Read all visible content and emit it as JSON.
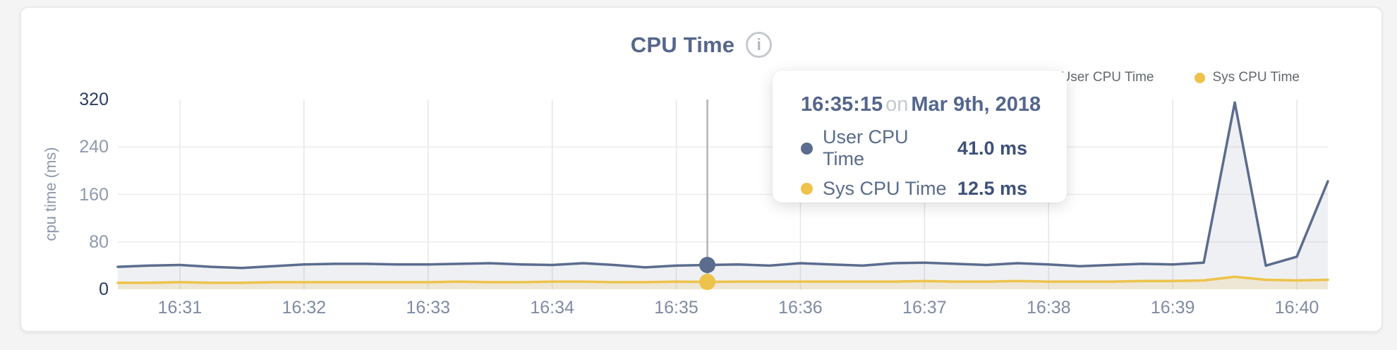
{
  "header": {
    "title": "CPU Time",
    "info_glyph": "i"
  },
  "legend": [
    {
      "label": "User CPU Time",
      "color": "#5b6c8e"
    },
    {
      "label": "Sys CPU Time",
      "color": "#eec34b"
    }
  ],
  "tooltip": {
    "time": "16:35:15",
    "separator": "on",
    "date": "Mar 9th, 2018",
    "rows": [
      {
        "label": "User CPU Time",
        "value": "41.0 ms",
        "color": "#5b6c8e"
      },
      {
        "label": "Sys CPU Time",
        "value": "12.5 ms",
        "color": "#eec34b"
      }
    ]
  },
  "chart_data": {
    "type": "area",
    "title": "CPU Time",
    "xlabel": "",
    "ylabel": "cpu time (ms)",
    "ylim": [
      0,
      320
    ],
    "yticks": [
      0,
      80,
      160,
      240,
      320
    ],
    "ygrid": [
      80,
      160,
      240
    ],
    "xticks": [
      "16:31",
      "16:32",
      "16:33",
      "16:34",
      "16:35",
      "16:36",
      "16:37",
      "16:38",
      "16:39",
      "16:40"
    ],
    "x_start": "16:30:30",
    "x_end": "16:40:15",
    "interval_seconds": 15,
    "grid": true,
    "legend_position": "top-right",
    "series": [
      {
        "name": "User CPU Time",
        "color": "#5b6c8e",
        "fill": "rgba(91,107,140,0.10)",
        "values": [
          38,
          40,
          41,
          38,
          36,
          39,
          42,
          43,
          43,
          42,
          42,
          43,
          44,
          42,
          41,
          44,
          41,
          37,
          40,
          41,
          42,
          40,
          44,
          42,
          40,
          44,
          45,
          43,
          41,
          44,
          42,
          39,
          41,
          43,
          42,
          45,
          315,
          40,
          55,
          182
        ]
      },
      {
        "name": "Sys CPU Time",
        "color": "#eec34b",
        "fill": "rgba(236,195,76,0.18)",
        "values": [
          11,
          11,
          12,
          11,
          11,
          12,
          12,
          12,
          12,
          12,
          12,
          13,
          12,
          12,
          13,
          13,
          12,
          12,
          13,
          12.5,
          13,
          13,
          13,
          13,
          13,
          13,
          14,
          13,
          13,
          14,
          13,
          13,
          13,
          14,
          14,
          15,
          21,
          16,
          15,
          16
        ]
      }
    ],
    "highlight": {
      "index": 19,
      "time": "16:35:15",
      "date": "Mar 9th, 2018",
      "user_value": 41.0,
      "sys_value": 12.5,
      "crosshair_color": "#b4b4b4"
    },
    "gridline_color_vertical": "#e6e6e8",
    "gridline_color_horizontal": "#ececee"
  }
}
